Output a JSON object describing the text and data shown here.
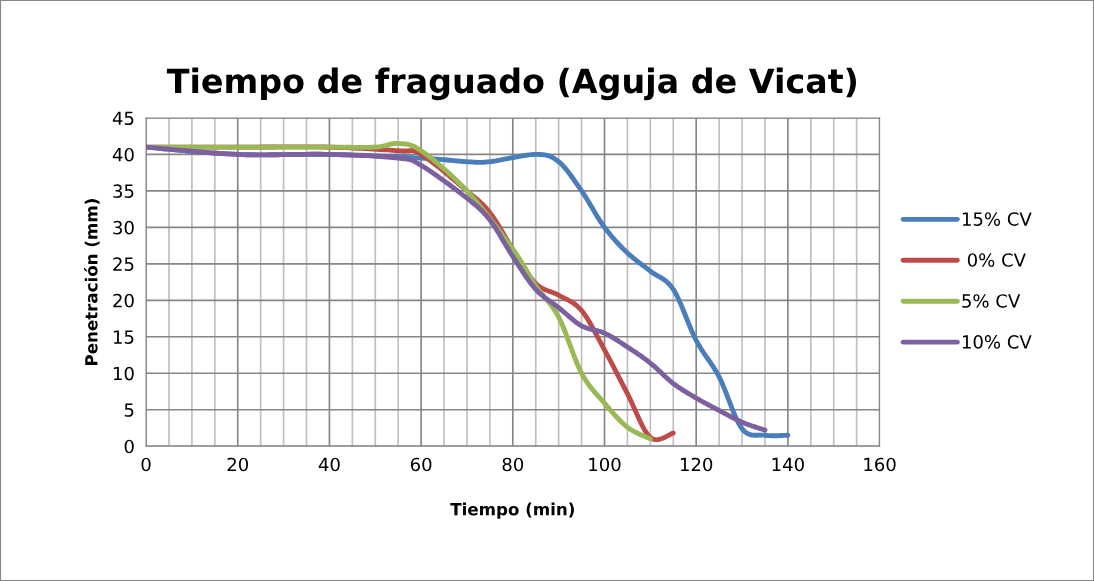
{
  "chart_data": {
    "type": "line",
    "title": "Tiempo de fraguado (Aguja de Vicat)",
    "xlabel": "Tiempo (min)",
    "ylabel": "Penetración (mm)",
    "xlim": [
      0,
      160
    ],
    "xticks": [
      0,
      20,
      40,
      60,
      80,
      100,
      120,
      140,
      160
    ],
    "ylim": [
      0,
      45
    ],
    "yticks": [
      0,
      5,
      10,
      15,
      20,
      25,
      30,
      35,
      40,
      45
    ],
    "grid": true,
    "legend": "right",
    "marker": "none",
    "line_style": "solid",
    "series": [
      {
        "name": "15% CV",
        "color": "#4a7ebb",
        "x": [
          0,
          20,
          40,
          60,
          70,
          75,
          85,
          90,
          95,
          100,
          105,
          110,
          115,
          120,
          125,
          130,
          135,
          140
        ],
        "values": [
          41,
          40,
          40,
          39.5,
          39,
          39,
          40,
          39,
          35,
          30,
          26.5,
          24,
          21.5,
          14.5,
          9.5,
          2.4,
          1.5,
          1.5
        ]
      },
      {
        "name": " 0% CV",
        "color": "#be4b48",
        "x": [
          0,
          20,
          40,
          55,
          60,
          70,
          75,
          80,
          85,
          90,
          95,
          100,
          105,
          110,
          115
        ],
        "values": [
          41,
          41,
          41,
          40.5,
          40,
          35,
          32,
          27,
          22.3,
          20.7,
          18.6,
          13.2,
          7.2,
          1.2,
          1.8
        ]
      },
      {
        "name": "5% CV",
        "color": "#98b954",
        "x": [
          0,
          20,
          40,
          50,
          55,
          60,
          70,
          80,
          85,
          90,
          95,
          100,
          105,
          110
        ],
        "values": [
          41,
          41,
          41,
          41,
          41.5,
          40.5,
          35,
          27,
          22,
          17.7,
          10,
          5.9,
          2.6,
          1
        ]
      },
      {
        "name": "10% CV",
        "color": "#7d60a0",
        "x": [
          0,
          20,
          40,
          55,
          60,
          70,
          75,
          80,
          85,
          90,
          95,
          100,
          105,
          110,
          115,
          120,
          125,
          130,
          135
        ],
        "values": [
          41,
          40,
          40,
          39.5,
          38.5,
          34,
          31,
          26,
          21.5,
          19,
          16.5,
          15.5,
          13.6,
          11.4,
          8.6,
          6.6,
          4.9,
          3.3,
          2.2
        ]
      }
    ]
  }
}
